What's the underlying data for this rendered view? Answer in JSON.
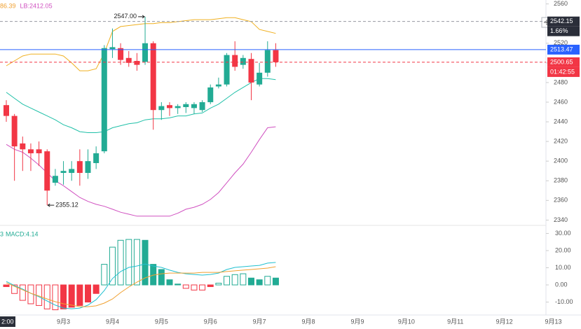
{
  "chart_data": [
    {
      "type": "candlestick",
      "header_labels": [
        {
          "text": "86.39",
          "color": "#f0a030"
        },
        {
          "text": "LB:2412.05",
          "color": "#d050c0"
        }
      ],
      "open": [
        2457,
        2446,
        2418,
        2412,
        2412,
        2410,
        2378,
        2388,
        2388,
        2400,
        2388,
        2398,
        2410,
        2514,
        2515,
        2505,
        2502,
        2501,
        2520,
        2452,
        2457,
        2454,
        2455,
        2454,
        2452,
        2460,
        2476,
        2478,
        2508,
        2498,
        2504,
        2478,
        2490,
        2513
      ],
      "high": [
        2462,
        2448,
        2425,
        2418,
        2420,
        2412,
        2392,
        2400,
        2400,
        2412,
        2412,
        2415,
        2518,
        2535,
        2520,
        2512,
        2510,
        2547,
        2522,
        2460,
        2460,
        2458,
        2460,
        2460,
        2462,
        2478,
        2485,
        2510,
        2522,
        2508,
        2510,
        2500,
        2522,
        2520
      ],
      "low": [
        2440,
        2380,
        2390,
        2390,
        2395,
        2355.12,
        2375,
        2376,
        2380,
        2375,
        2382,
        2392,
        2408,
        2505,
        2498,
        2496,
        2492,
        2498,
        2432,
        2442,
        2446,
        2448,
        2449,
        2448,
        2450,
        2458,
        2474,
        2476,
        2492,
        2494,
        2462,
        2476,
        2486,
        2496
      ],
      "close": [
        2446,
        2415,
        2412,
        2408,
        2408,
        2370,
        2385,
        2390,
        2392,
        2388,
        2400,
        2408,
        2515,
        2516,
        2503,
        2500,
        2498,
        2520,
        2452,
        2456,
        2454,
        2456,
        2458,
        2458,
        2460,
        2475,
        2478,
        2508,
        2496,
        2505,
        2480,
        2490,
        2513,
        2500.65
      ],
      "up_color": "#22ab94",
      "down_color": "#f23645",
      "upper": [
        2497,
        2502,
        2507,
        2509,
        2509,
        2509,
        2509,
        2507,
        2500,
        2492,
        2492,
        2494,
        2510,
        2532,
        2537,
        2538,
        2539,
        2540,
        2540,
        2541,
        2541,
        2542,
        2543,
        2544,
        2544,
        2544,
        2545,
        2546,
        2546,
        2544,
        2542,
        2534,
        2532,
        2530
      ],
      "middle": [
        2470,
        2464,
        2458,
        2454,
        2450,
        2446,
        2442,
        2437,
        2434,
        2430,
        2429,
        2429,
        2430,
        2434,
        2436,
        2438,
        2439,
        2442,
        2443,
        2443,
        2444,
        2446,
        2446,
        2448,
        2449,
        2454,
        2458,
        2464,
        2470,
        2475,
        2480,
        2484,
        2484,
        2483
      ],
      "lower": [
        2417,
        2412,
        2409,
        2403,
        2396,
        2388,
        2380,
        2375,
        2369,
        2363,
        2359,
        2356,
        2354,
        2351,
        2348,
        2346,
        2344,
        2344,
        2344,
        2344,
        2344,
        2347,
        2351,
        2353,
        2356,
        2361,
        2368,
        2378,
        2388,
        2397,
        2409,
        2422,
        2434,
        2435
      ],
      "upper_color": "#f0b020",
      "middle_color": "#20c0a8",
      "lower_color": "#d050c0",
      "ylim": [
        2336,
        2564
      ],
      "yticks": [
        2340,
        2360,
        2380,
        2400,
        2420,
        2440,
        2460,
        2480,
        2500,
        2520,
        2540,
        2560
      ],
      "price_lines": [
        {
          "value": 2542.15,
          "color": "#9598a1",
          "box": "#2a2e39",
          "sub": "1.66%"
        },
        {
          "value": 2513.47,
          "color": "#2962ff",
          "box": "#2962ff"
        },
        {
          "value": 2500.65,
          "color": "#f23645",
          "box": "#f23645",
          "sub": "01:42:55"
        }
      ],
      "annotations": [
        {
          "text": "2547.00",
          "index": 17,
          "at": "high"
        },
        {
          "text": "2355.12",
          "index": 5,
          "at": "low"
        }
      ],
      "xtick_labels": [
        "9月3",
        "9月4",
        "9月5",
        "9月6",
        "9月7",
        "9月8",
        "9月9",
        "9月10",
        "9月11",
        "9月12",
        "9月13"
      ],
      "cursor_label": "2:00"
    },
    {
      "type": "macd",
      "prefix": "3",
      "label": "MACD:4.14",
      "label_color": "#22ab94",
      "hist": [
        -1,
        -5,
        -9,
        -11,
        -12,
        -14,
        -14.5,
        -14,
        -13,
        -12,
        -10,
        -5,
        12,
        22,
        26,
        26.5,
        26.5,
        26,
        12,
        9,
        3,
        0.5,
        -2,
        -3,
        -3,
        -1,
        1,
        5,
        6,
        6.5,
        4,
        3,
        5,
        4
      ],
      "dif": [
        2.0,
        -0.4,
        -2.4,
        -4.9,
        -6.9,
        -9.4,
        -11.8,
        -13.5,
        -13.9,
        -13.5,
        -11.8,
        -8.6,
        -3.3,
        3.7,
        7.8,
        10.2,
        11.0,
        12.2,
        11.0,
        10.2,
        8.6,
        7.3,
        6.5,
        6.1,
        5.7,
        6.1,
        6.9,
        9.0,
        10.2,
        10.6,
        11.0,
        11.4,
        12.7,
        13.1
      ],
      "dea": [
        1.2,
        -0.8,
        -2.9,
        -4.9,
        -6.5,
        -8.2,
        -9.8,
        -11,
        -11.8,
        -12.7,
        -12.7,
        -12.2,
        -10.6,
        -8.2,
        -4.5,
        -1.2,
        1.6,
        4.1,
        5.7,
        6.5,
        6.9,
        6.9,
        6.9,
        6.9,
        7.3,
        7.3,
        7.3,
        7.8,
        8.2,
        8.6,
        9,
        9.4,
        9.8,
        10.6
      ],
      "dif_color": "#20c0d0",
      "dea_color": "#f0a030",
      "up_color": "#22ab94",
      "down_color": "#f23645",
      "ylim": [
        -15.5,
        35.5
      ],
      "yticks": [
        {
          "value": -10,
          "label": "-10.00"
        },
        {
          "value": 0,
          "label": "0.00"
        },
        {
          "value": 10,
          "label": "10.00"
        },
        {
          "value": 20,
          "label": "20.00"
        },
        {
          "value": 30,
          "label": "30.00"
        }
      ]
    }
  ]
}
